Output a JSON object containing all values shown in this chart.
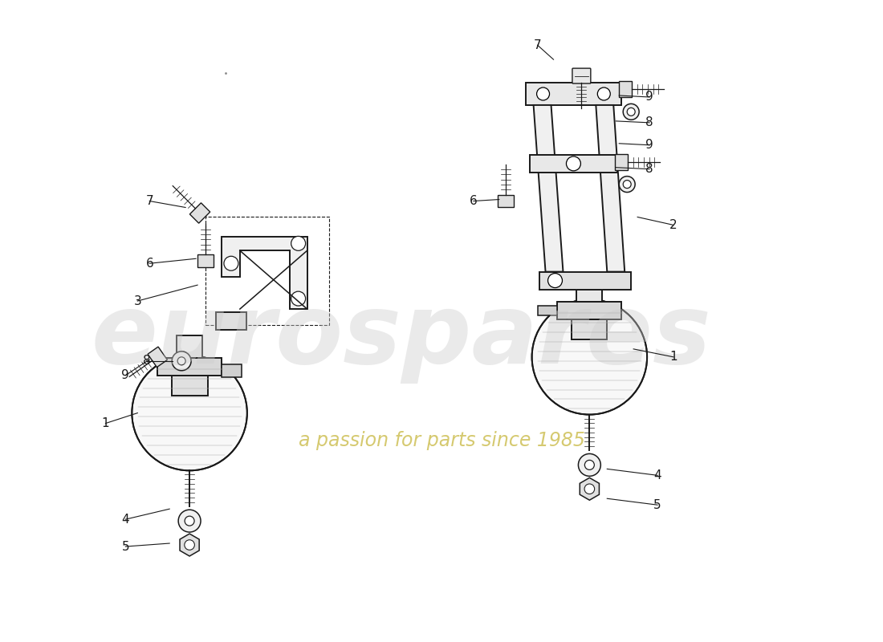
{
  "bg_color": "#ffffff",
  "line_color": "#1a1a1a",
  "watermark_text1": "eurospares",
  "watermark_text2": "a passion for parts since 1985",
  "wm_color1": "#cccccc",
  "wm_color2": "#c8b840",
  "label_color": "#1a1a1a",
  "label_fs": 11,
  "lw": 1.4,
  "fig_w": 11.0,
  "fig_h": 8.0,
  "dpi": 100
}
